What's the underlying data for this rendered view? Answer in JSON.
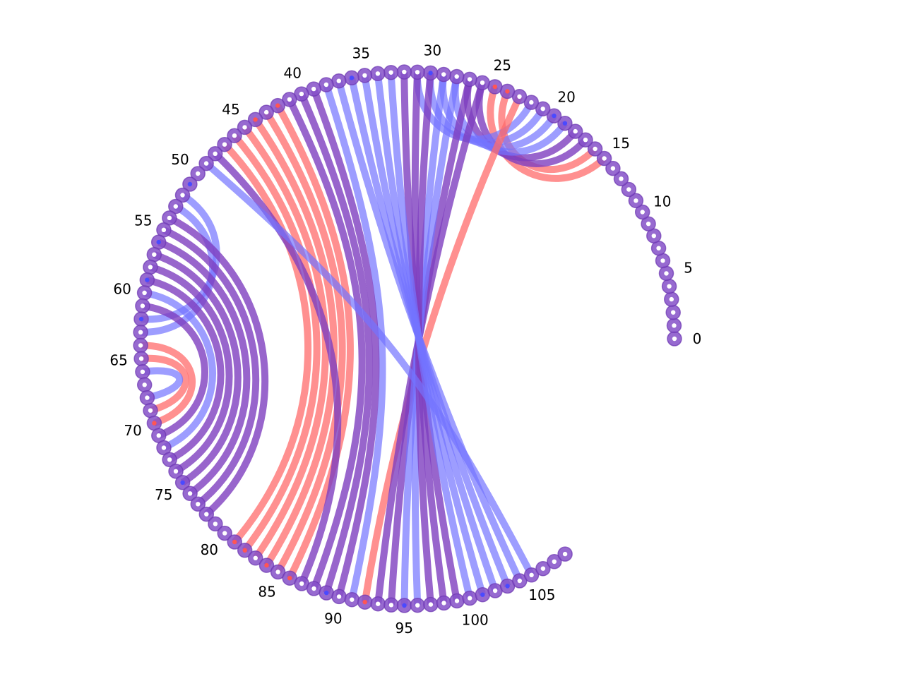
{
  "colors": {
    "red": "#ff6b6b",
    "blue": "#7373ff",
    "purple": "#7e3fbf",
    "node_fill": "#8550c8",
    "node_stroke": "#6b35b0",
    "center_white": "#ffffff",
    "center_red": "#ff5555",
    "center_blue": "#4a4aff"
  },
  "diagram": {
    "node_count": 109,
    "tick_labels": [
      "0",
      "5",
      "10",
      "15",
      "20",
      "25",
      "30",
      "35",
      "40",
      "45",
      "50",
      "55",
      "60",
      "65",
      "70",
      "75",
      "80",
      "85",
      "90",
      "95",
      "100",
      "105"
    ],
    "tick_label_values": [
      0,
      5,
      10,
      15,
      20,
      25,
      30,
      35,
      40,
      45,
      50,
      55,
      60,
      65,
      70,
      75,
      80,
      85,
      90,
      95,
      100,
      105
    ],
    "node_centers": {
      "white": [
        0,
        1,
        2,
        3,
        4,
        5,
        6,
        7,
        8,
        9,
        10,
        11,
        12,
        13,
        14,
        15,
        16,
        17,
        18,
        19,
        20,
        21,
        22,
        23,
        24,
        25,
        26,
        27,
        28,
        29,
        30,
        31,
        32,
        33,
        34,
        35,
        36,
        37,
        38,
        39,
        40,
        41,
        42,
        43,
        44,
        45,
        46,
        47,
        48,
        49,
        50,
        51,
        52,
        53,
        54,
        55,
        56,
        57,
        58,
        59,
        60,
        61,
        62,
        63,
        64,
        65,
        66,
        67,
        68,
        69,
        70,
        71,
        72,
        73,
        74,
        75,
        76,
        77,
        78,
        79,
        80,
        81,
        82,
        83,
        84,
        85,
        86,
        87,
        88,
        89,
        90,
        91,
        92,
        93,
        94,
        95,
        96,
        97,
        98,
        99,
        100,
        101,
        102,
        103,
        104,
        105,
        106,
        107,
        108
      ],
      "red": [
        24,
        25,
        42,
        44,
        70,
        81,
        82,
        84,
        86,
        92
      ],
      "blue": [
        19,
        20,
        30,
        36,
        51,
        56,
        59,
        62,
        75,
        89,
        95,
        101,
        103
      ]
    },
    "chords": [
      {
        "from": 15,
        "to": 25,
        "color": "red"
      },
      {
        "from": 16,
        "to": 24,
        "color": "red"
      },
      {
        "from": 17,
        "to": 26,
        "color": "purple"
      },
      {
        "from": 18,
        "to": 27,
        "color": "purple"
      },
      {
        "from": 19,
        "to": 28,
        "color": "blue"
      },
      {
        "from": 20,
        "to": 29,
        "color": "blue"
      },
      {
        "from": 21,
        "to": 30,
        "color": "blue"
      },
      {
        "from": 22,
        "to": 31,
        "color": "blue"
      },
      {
        "from": 23,
        "to": 92,
        "color": "red"
      },
      {
        "from": 26,
        "to": 93,
        "color": "purple"
      },
      {
        "from": 27,
        "to": 94,
        "color": "purple"
      },
      {
        "from": 28,
        "to": 95,
        "color": "blue"
      },
      {
        "from": 29,
        "to": 96,
        "color": "blue"
      },
      {
        "from": 30,
        "to": 97,
        "color": "purple"
      },
      {
        "from": 31,
        "to": 98,
        "color": "purple"
      },
      {
        "from": 32,
        "to": 99,
        "color": "purple"
      },
      {
        "from": 33,
        "to": 100,
        "color": "blue"
      },
      {
        "from": 34,
        "to": 101,
        "color": "blue"
      },
      {
        "from": 35,
        "to": 102,
        "color": "blue"
      },
      {
        "from": 36,
        "to": 103,
        "color": "blue"
      },
      {
        "from": 37,
        "to": 104,
        "color": "blue"
      },
      {
        "from": 38,
        "to": 91,
        "color": "blue"
      },
      {
        "from": 39,
        "to": 90,
        "color": "purple"
      },
      {
        "from": 40,
        "to": 89,
        "color": "purple"
      },
      {
        "from": 41,
        "to": 88,
        "color": "purple"
      },
      {
        "from": 42,
        "to": 86,
        "color": "red"
      },
      {
        "from": 43,
        "to": 85,
        "color": "red"
      },
      {
        "from": 44,
        "to": 84,
        "color": "red"
      },
      {
        "from": 45,
        "to": 83,
        "color": "red"
      },
      {
        "from": 46,
        "to": 82,
        "color": "red"
      },
      {
        "from": 47,
        "to": 81,
        "color": "red"
      },
      {
        "from": 48,
        "to": 87,
        "color": "purple"
      },
      {
        "from": 49,
        "to": 105,
        "color": "blue"
      },
      {
        "from": 52,
        "to": 62,
        "color": "blue"
      },
      {
        "from": 53,
        "to": 63,
        "color": "blue"
      },
      {
        "from": 54,
        "to": 78,
        "color": "purple"
      },
      {
        "from": 55,
        "to": 77,
        "color": "purple"
      },
      {
        "from": 56,
        "to": 76,
        "color": "purple"
      },
      {
        "from": 57,
        "to": 75,
        "color": "purple"
      },
      {
        "from": 58,
        "to": 74,
        "color": "purple"
      },
      {
        "from": 59,
        "to": 73,
        "color": "purple"
      },
      {
        "from": 60,
        "to": 72,
        "color": "blue"
      },
      {
        "from": 61,
        "to": 71,
        "color": "purple"
      },
      {
        "from": 64,
        "to": 70,
        "color": "red"
      },
      {
        "from": 65,
        "to": 69,
        "color": "red"
      },
      {
        "from": 66,
        "to": 68,
        "color": "blue"
      }
    ]
  }
}
